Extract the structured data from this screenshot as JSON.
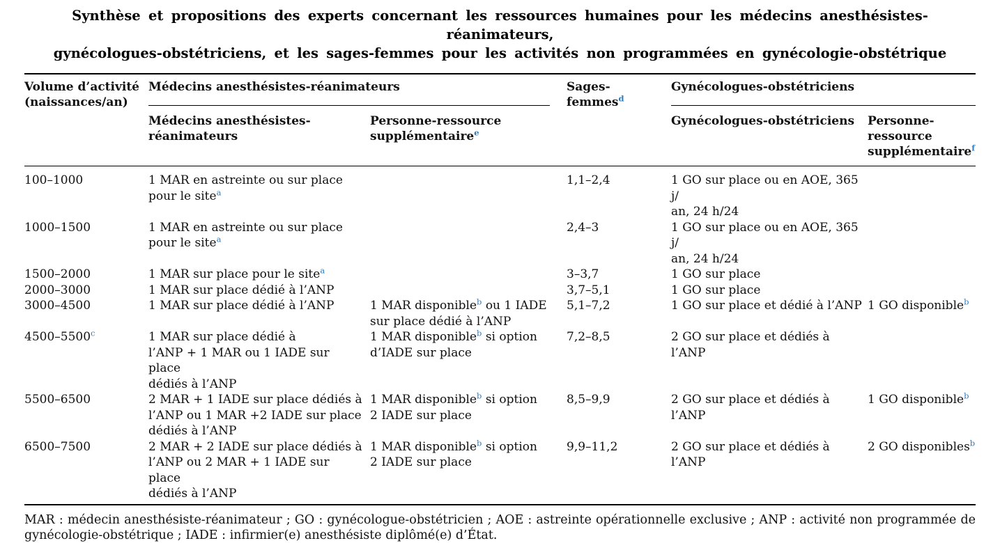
{
  "colors": {
    "accent_superscript": "#2b7cc0",
    "text": "#111111",
    "rule": "#000000",
    "background": "#ffffff"
  },
  "title": "Synthèse et propositions des experts concernant les ressources humaines pour les médecins anesthésistes-réanimateurs,\ngynécologues-obstétriciens, et les sages-femmes pour les activités non programmées en gynécologie-obstétrique",
  "table": {
    "header": {
      "col_volume": "Volume d’activité\n(naissances/an)",
      "group_mar": "Médecins anesthésistes-réanimateurs",
      "col_sages_femmes": "Sages-femmes^d",
      "group_go": "Gynécologues-obstétriciens",
      "sub_mar": "Médecins anesthésistes-\nréanimateurs",
      "sub_personne_ressource_mar": "Personne-ressource\nsupplémentaire^e",
      "sub_go": "Gynécologues-obstétriciens",
      "sub_personne_ressource_go": "Personne-\nressource\nsupplémentaire^f"
    },
    "rows": [
      [
        "100–1000",
        "1 MAR en astreinte ou sur place\npour le site^a",
        "",
        "1,1–2,4",
        "1 GO sur place ou en AOE, 365 j/\nan, 24 h/24",
        ""
      ],
      [
        "1000–1500",
        "1 MAR en astreinte ou sur place\npour le site^a",
        "",
        "2,4–3",
        "1 GO sur place ou en AOE, 365 j/\nan, 24 h/24",
        ""
      ],
      [
        "1500–2000",
        "1 MAR sur place pour le site^a",
        "",
        "3–3,7",
        "1 GO sur place",
        ""
      ],
      [
        "2000–3000",
        "1 MAR sur place dédié à l’ANP",
        "",
        "3,7–5,1",
        "1 GO sur place",
        ""
      ],
      [
        "3000–4500",
        "1 MAR sur place dédié à l’ANP",
        "1 MAR disponible^b ou 1 IADE\nsur place dédié à l’ANP",
        "5,1–7,2",
        "1 GO sur place et dédié à l’ANP",
        "1 GO disponible^b"
      ],
      [
        "4500–5500^c",
        "1 MAR sur place dédié à\nl’ANP + 1 MAR ou 1 IADE sur place\ndédiés à l’ANP",
        "1 MAR disponible^b si option\nd’IADE sur place",
        "7,2–8,5",
        "2 GO sur place et dédiés à l’ANP",
        ""
      ],
      [
        "5500–6500",
        "2 MAR + 1 IADE sur place dédiés à\nl’ANP ou 1 MAR +2 IADE sur place\ndédiés à l’ANP",
        "1 MAR disponible^b si option\n2 IADE sur place",
        "8,5–9,9",
        "2 GO sur place et dédiés à l’ANP",
        "1 GO disponible^b"
      ],
      [
        "6500–7500",
        "2 MAR + 2 IADE sur place dédiés à\nl’ANP ou 2 MAR + 1 IADE sur place\ndédiés à l’ANP",
        "1 MAR disponible^b si option\n2 IADE sur place",
        "9,9–11,2",
        "2 GO sur place et dédiés à l’ANP",
        "2 GO disponibles^b"
      ]
    ]
  },
  "footnote": "MAR : médecin anesthésiste-réanimateur ; GO : gynécologue-obstétricien ; AOE : astreinte opérationnelle exclusive ; ANP : activité non programmée de gynécologie-obstétrique ; IADE : infirmier(e) anesthésiste diplômé(e) d’État."
}
